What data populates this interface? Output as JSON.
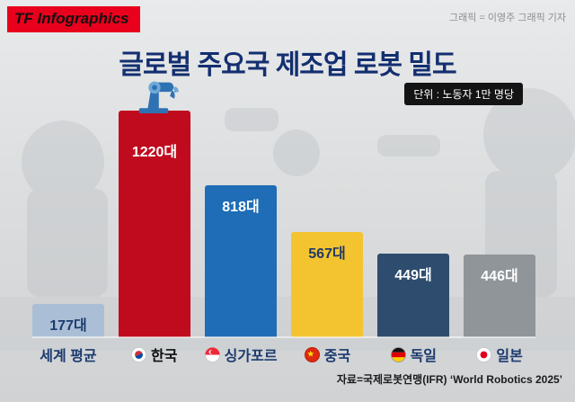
{
  "header": {
    "logo": "TF Infographics",
    "credit": "그래픽 = 이영주 그래픽 기자"
  },
  "title": "글로벌 주요국 제조업 로봇 밀도",
  "unit_badge": "단위 : 노동자 1만 명당",
  "source": "자료=국제로봇연맹(IFR) ‘World Robotics 2025’",
  "colors": {
    "logo_bg": "#e8001c",
    "title": "#132f70",
    "badge_bg": "#141414",
    "credit": "#8d8d8d",
    "source": "#1b1b1b",
    "korea_category": "#0d0d0d",
    "category": "#1c3a6e"
  },
  "chart_data": {
    "type": "bar",
    "title": "글로벌 주요국 제조업 로봇 밀도",
    "unit": "노동자 1만 명당 (대)",
    "categories": [
      "세계 평균",
      "한국",
      "싱가포르",
      "중국",
      "독일",
      "일본"
    ],
    "values": [
      177,
      1220,
      818,
      567,
      449,
      446
    ],
    "value_labels": [
      "177대",
      "1220대",
      "818대",
      "567대",
      "449대",
      "446대"
    ],
    "bar_colors": [
      "#aabfd6",
      "#c00a1e",
      "#1e6db6",
      "#f4c430",
      "#2e4d6e",
      "#90959a"
    ],
    "value_label_colors": [
      "#1c3a6e",
      "#ffffff",
      "#ffffff",
      "#203a66",
      "#ffffff",
      "#ffffff"
    ],
    "category_colors": [
      "#1c3a6e",
      "#0d0d0d",
      "#1c3a6e",
      "#1c3a6e",
      "#1c3a6e",
      "#1c3a6e"
    ],
    "flags": [
      "none",
      "south-korea",
      "singapore",
      "china",
      "germany",
      "japan"
    ],
    "ylim": [
      0,
      1300
    ],
    "legend": "none",
    "grid": false
  }
}
